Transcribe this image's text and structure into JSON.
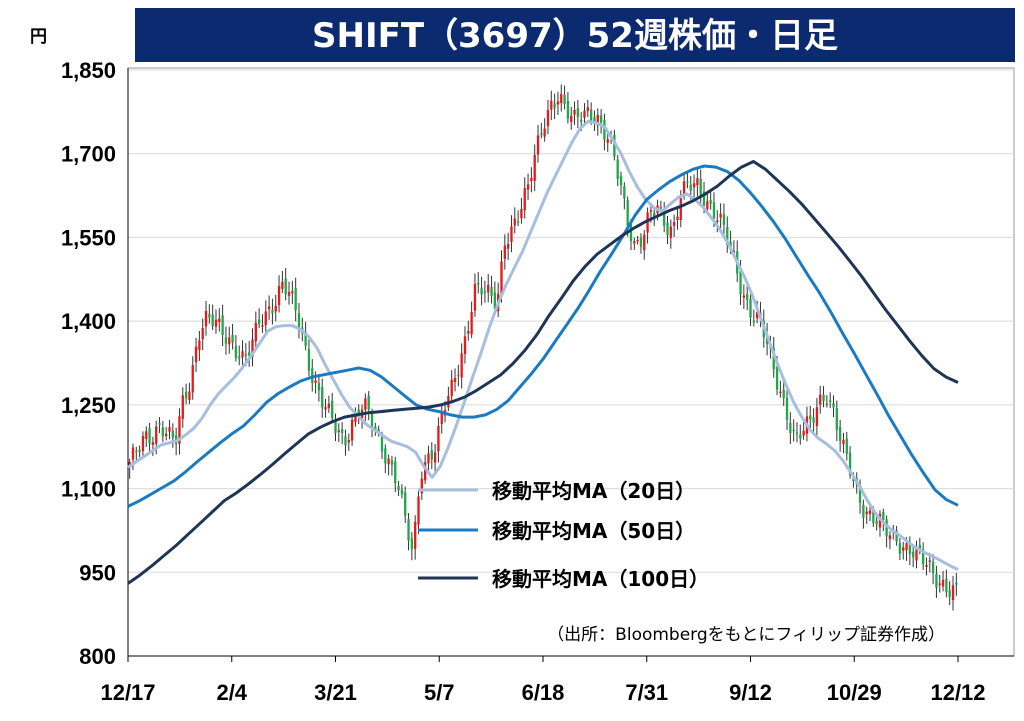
{
  "chart_data": {
    "type": "line",
    "title": "SHIFT（3697）52週株価・日足",
    "y_unit": "円",
    "ylim": [
      800,
      1850
    ],
    "y_ticks": [
      "1,850",
      "1,700",
      "1,550",
      "1,400",
      "1,250",
      "1,100",
      "950",
      "800"
    ],
    "y_tick_values": [
      1850,
      1700,
      1550,
      1400,
      1250,
      1100,
      950,
      800
    ],
    "x_ticks": [
      "12/17",
      "2/4",
      "3/21",
      "5/7",
      "6/18",
      "7/31",
      "9/12",
      "10/29",
      "12/12"
    ],
    "grid": "horizontal",
    "legend_position": "bottom-center",
    "candle_colors": {
      "up": "#e8191a",
      "down": "#1ea84a"
    },
    "close_series": [
      1140,
      1165,
      1195,
      1200,
      1215,
      1190,
      1180,
      1260,
      1300,
      1380,
      1400,
      1395,
      1385,
      1370,
      1350,
      1325,
      1355,
      1400,
      1420,
      1440,
      1465,
      1440,
      1405,
      1350,
      1300,
      1260,
      1230,
      1205,
      1185,
      1220,
      1245,
      1240,
      1200,
      1175,
      1150,
      1115,
      1040,
      975,
      1130,
      1160,
      1180,
      1240,
      1270,
      1320,
      1380,
      1460,
      1455,
      1440,
      1430,
      1550,
      1570,
      1595,
      1630,
      1700,
      1760,
      1790,
      1800,
      1770,
      1760,
      1780,
      1780,
      1760,
      1730,
      1710,
      1660,
      1590,
      1530,
      1540,
      1590,
      1610,
      1580,
      1560,
      1620,
      1640,
      1650,
      1630,
      1600,
      1580,
      1545,
      1510,
      1460,
      1420,
      1400,
      1370,
      1320,
      1280,
      1230,
      1180,
      1200,
      1220,
      1260,
      1275,
      1230,
      1175,
      1140,
      1100,
      1065,
      1045,
      1035,
      1020,
      1015,
      1000,
      990,
      975,
      965,
      950,
      935,
      920,
      910
    ],
    "series": [
      {
        "name": "移動平均MA（20日）",
        "color": "#a7bede",
        "values": [
          1138,
          1148,
          1158,
          1168,
          1178,
          1182,
          1186,
          1196,
          1208,
          1226,
          1250,
          1270,
          1285,
          1300,
          1318,
          1338,
          1360,
          1382,
          1390,
          1392,
          1392,
          1385,
          1372,
          1352,
          1322,
          1295,
          1268,
          1245,
          1230,
          1215,
          1205,
          1195,
          1185,
          1180,
          1175,
          1165,
          1140,
          1120,
          1140,
          1175,
          1215,
          1258,
          1302,
          1345,
          1390,
          1430,
          1465,
          1495,
          1525,
          1560,
          1595,
          1630,
          1660,
          1690,
          1720,
          1745,
          1758,
          1755,
          1748,
          1725,
          1700,
          1668,
          1640,
          1618,
          1603,
          1597,
          1610,
          1622,
          1628,
          1618,
          1604,
          1585,
          1565,
          1540,
          1510,
          1480,
          1445,
          1405,
          1365,
          1325,
          1288,
          1255,
          1228,
          1205,
          1190,
          1180,
          1168,
          1150,
          1128,
          1105,
          1078,
          1055,
          1038,
          1025,
          1015,
          1003,
          993,
          985,
          978,
          970,
          962,
          955
        ]
      },
      {
        "name": "移動平均MA（50日）",
        "color": "#1a7ac2",
        "values": [
          1068,
          1078,
          1090,
          1102,
          1114,
          1130,
          1148,
          1165,
          1182,
          1198,
          1212,
          1232,
          1254,
          1270,
          1282,
          1293,
          1300,
          1304,
          1308,
          1312,
          1316,
          1312,
          1300,
          1283,
          1266,
          1250,
          1242,
          1238,
          1232,
          1228,
          1228,
          1232,
          1242,
          1258,
          1282,
          1306,
          1332,
          1362,
          1392,
          1422,
          1455,
          1490,
          1522,
          1555,
          1590,
          1618,
          1635,
          1650,
          1662,
          1672,
          1678,
          1676,
          1668,
          1652,
          1630,
          1605,
          1578,
          1548,
          1515,
          1482,
          1450,
          1415,
          1378,
          1342,
          1305,
          1268,
          1230,
          1195,
          1160,
          1128,
          1098,
          1080,
          1070
        ]
      },
      {
        "name": "移動平均MA（100日）",
        "color": "#1f3556",
        "values": [
          930,
          945,
          962,
          980,
          998,
          1018,
          1038,
          1058,
          1078,
          1092,
          1108,
          1125,
          1143,
          1162,
          1180,
          1198,
          1210,
          1220,
          1228,
          1232,
          1236,
          1238,
          1240,
          1242,
          1244,
          1246,
          1250,
          1256,
          1264,
          1276,
          1290,
          1304,
          1324,
          1348,
          1376,
          1410,
          1440,
          1472,
          1498,
          1520,
          1536,
          1552,
          1566,
          1578,
          1588,
          1598,
          1606,
          1616,
          1628,
          1642,
          1660,
          1676,
          1686,
          1672,
          1652,
          1632,
          1610,
          1585,
          1560,
          1535,
          1508,
          1480,
          1450,
          1420,
          1392,
          1364,
          1338,
          1315,
          1300,
          1290
        ]
      }
    ],
    "source": "（出所：Bloombergをもとにフィリップ証券作成）"
  }
}
